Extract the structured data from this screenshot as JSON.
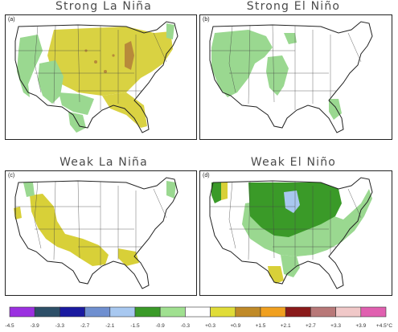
{
  "panels": [
    {
      "letter": "(a)",
      "title": "Strong La Niña"
    },
    {
      "letter": "(b)",
      "title": "Strong El Niño"
    },
    {
      "letter": "(c)",
      "title": "Weak La Niña"
    },
    {
      "letter": "(d)",
      "title": "Weak El Niño"
    }
  ],
  "legend": {
    "unit_suffix": "°C",
    "boundaries": [
      "-4.5",
      "-3.9",
      "-3.3",
      "-2.7",
      "-2.1",
      "-1.5",
      "-0.9",
      "-0.3",
      "+0.3",
      "+0.9",
      "+1.5",
      "+2.1",
      "+2.7",
      "+3.3",
      "+3.9",
      "+4.5"
    ],
    "last_label": "+4.5°C",
    "colors": [
      "#9b30e0",
      "#2d4f68",
      "#1a1aa0",
      "#6f8fd0",
      "#a8c8f0",
      "#3a9a28",
      "#a0e090",
      "#ffffff",
      "#e0dc38",
      "#c08a28",
      "#f0a020",
      "#8a1a1a",
      "#b87878",
      "#f0c8c8",
      "#e060b0"
    ]
  },
  "colors": {
    "warm_yellow": "#d8d038",
    "warm_brown": "#b88a3a",
    "cool_light_green": "#9ad890",
    "cool_dark_green": "#3a9a28",
    "cool_light_blue": "#a8c8f0"
  }
}
